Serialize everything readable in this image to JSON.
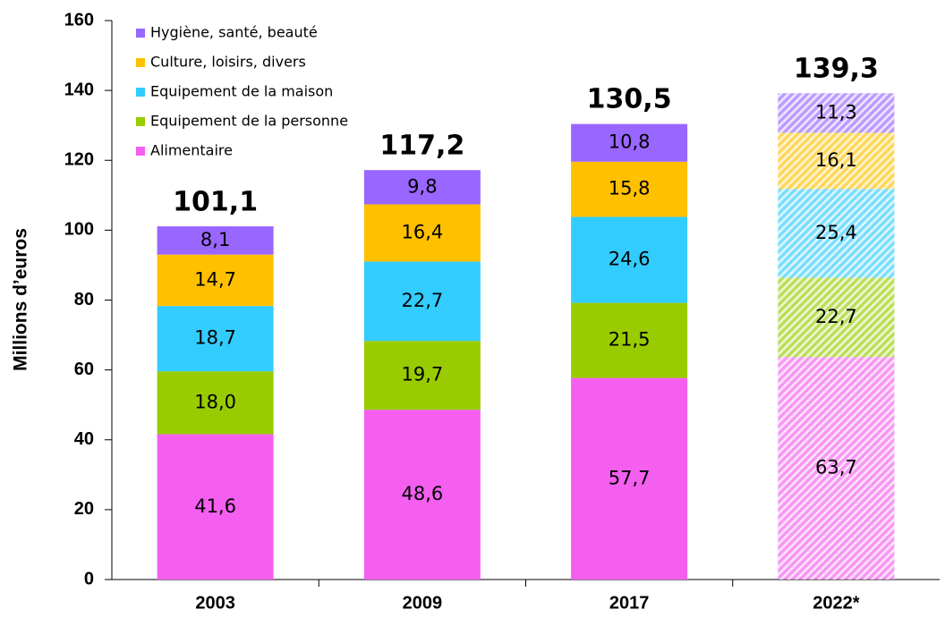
{
  "chart_data": {
    "type": "stacked_bar",
    "y_label": "Millions d’euros",
    "categories": [
      "2003",
      "2009",
      "2017",
      "2022*"
    ],
    "series": [
      {
        "name": "Alimentaire",
        "color": "#f45ff0",
        "values": [
          41.6,
          48.6,
          57.7,
          63.7
        ],
        "value_labels": [
          "41,6",
          "48,6",
          "57,7",
          "63,7"
        ]
      },
      {
        "name": "Equipement de la personne",
        "color": "#99cc00",
        "values": [
          18.0,
          19.7,
          21.5,
          22.7
        ],
        "value_labels": [
          "18,0",
          "19,7",
          "21,5",
          "22,7"
        ]
      },
      {
        "name": "Equipement de la maison",
        "color": "#33ccff",
        "values": [
          18.7,
          22.7,
          24.6,
          25.4
        ],
        "value_labels": [
          "18,7",
          "22,7",
          "24,6",
          "25,4"
        ]
      },
      {
        "name": "Culture, loisirs, divers",
        "color": "#ffc000",
        "values": [
          14.7,
          16.4,
          15.8,
          16.1
        ],
        "value_labels": [
          "14,7",
          "16,4",
          "15,8",
          "16,1"
        ]
      },
      {
        "name": "Hygiène, santé, beauté",
        "color": "#9966ff",
        "values": [
          8.1,
          9.8,
          10.8,
          11.3
        ],
        "value_labels": [
          "8,1",
          "9,8",
          "10,8",
          "11,3"
        ]
      }
    ],
    "totals": [
      101.1,
      117.2,
      130.5,
      139.3
    ],
    "totals_labels": [
      "101,1",
      "117,2",
      "130,5",
      "139,3"
    ],
    "hatched": [
      false,
      false,
      false,
      true
    ],
    "ylim": [
      0,
      160
    ],
    "yticks": [
      0,
      20,
      40,
      60,
      80,
      100,
      120,
      140,
      160
    ],
    "legend": "top-left"
  }
}
